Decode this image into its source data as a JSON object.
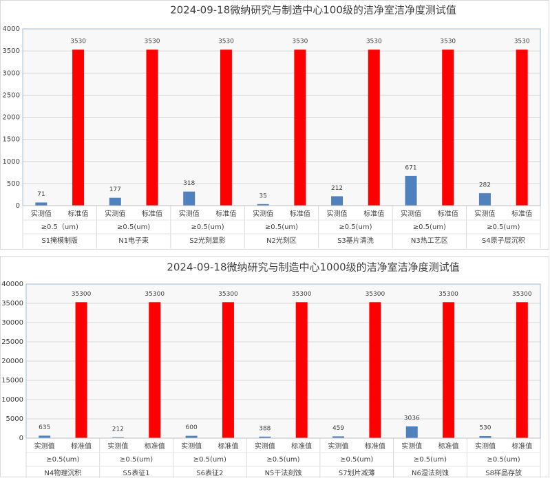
{
  "chart_data": [
    {
      "type": "bar",
      "title": "2024-09-18微纳研究与制造中心100级的洁净室洁净度测试值",
      "categories": [
        "实测值",
        "标准值",
        "实测值",
        "标准值",
        "实测值",
        "标准值",
        "实测值",
        "标准值",
        "实测值",
        "标准值",
        "实测值",
        "标准值",
        "实测值",
        "标准值"
      ],
      "values": [
        71,
        3530,
        177,
        3530,
        318,
        3530,
        35,
        3530,
        212,
        3530,
        671,
        3530,
        282,
        3530
      ],
      "colors": [
        "#4f81bd",
        "#ff0000",
        "#4f81bd",
        "#ff0000",
        "#4f81bd",
        "#ff0000",
        "#4f81bd",
        "#ff0000",
        "#4f81bd",
        "#ff0000",
        "#4f81bd",
        "#ff0000",
        "#4f81bd",
        "#ff0000"
      ],
      "size_labels": [
        "≥0.5（um)",
        "≥0.5(um)",
        "≥0.5(um)",
        "≥0.5(um)",
        "≥0.5(um)",
        "≥0.5(um)",
        "≥0.5(um)"
      ],
      "groups": [
        "S1掩模制版",
        "N1电子束",
        "S2光刻显影",
        "N2光刻区",
        "S3基片清洗",
        "N3热工艺区",
        "S4原子层沉积"
      ],
      "ylim": [
        0,
        4000
      ],
      "yticks": [
        0,
        500,
        1000,
        1500,
        2000,
        2500,
        3000,
        3500,
        4000
      ],
      "grid": true
    },
    {
      "type": "bar",
      "title": "2024-09-18微纳研究与制造中心1000级的洁净室洁净度测试值",
      "categories": [
        "实测值",
        "标准值",
        "实测值",
        "标准值",
        "实测值",
        "标准值",
        "实测值",
        "标准值",
        "实测值",
        "标准值",
        "实测值",
        "标准值",
        "实测值",
        "标准值"
      ],
      "values": [
        635,
        35300,
        212,
        35300,
        600,
        35300,
        388,
        35300,
        459,
        35300,
        3036,
        35300,
        530,
        35300
      ],
      "colors": [
        "#4f81bd",
        "#ff0000",
        "#4f81bd",
        "#ff0000",
        "#4f81bd",
        "#ff0000",
        "#4f81bd",
        "#ff0000",
        "#4f81bd",
        "#ff0000",
        "#4f81bd",
        "#ff0000",
        "#4f81bd",
        "#ff0000"
      ],
      "size_labels": [
        "≥0.5(um)",
        "≥0.5(um)",
        "≥0.5(um)",
        "≥0.5(um)",
        "≥0.5(um)",
        "≥0.5(um)",
        "≥0.5(um)"
      ],
      "groups": [
        "N4物理沉积",
        "S5表征1",
        "S6表征2",
        "N5干法刻蚀",
        "S7划片减薄",
        "N6湿法刻蚀",
        "S8样品存放"
      ],
      "ylim": [
        0,
        40000
      ],
      "yticks": [
        0,
        5000,
        10000,
        15000,
        20000,
        25000,
        30000,
        35000,
        40000
      ],
      "grid": true
    }
  ]
}
